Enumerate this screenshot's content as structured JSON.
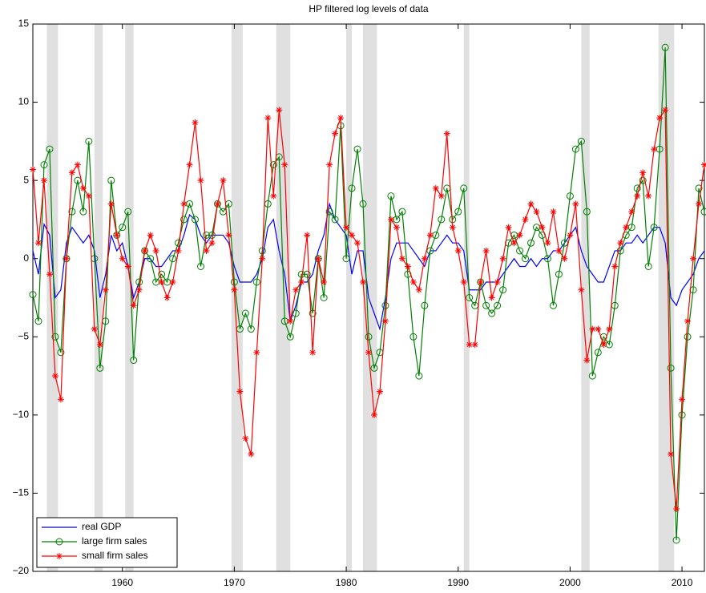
{
  "chart_data": {
    "type": "line",
    "title": "HP filtered log levels of data",
    "x": [
      1952,
      1952.5,
      1953,
      1953.5,
      1954,
      1954.5,
      1955,
      1955.5,
      1956,
      1956.5,
      1957,
      1957.5,
      1958,
      1958.5,
      1959,
      1959.5,
      1960,
      1960.5,
      1961,
      1961.5,
      1962,
      1962.5,
      1963,
      1963.5,
      1964,
      1964.5,
      1965,
      1965.5,
      1966,
      1966.5,
      1967,
      1967.5,
      1968,
      1968.5,
      1969,
      1969.5,
      1970,
      1970.5,
      1971,
      1971.5,
      1972,
      1972.5,
      1973,
      1973.5,
      1974,
      1974.5,
      1975,
      1975.5,
      1976,
      1976.5,
      1977,
      1977.5,
      1978,
      1978.5,
      1979,
      1979.5,
      1980,
      1980.5,
      1981,
      1981.5,
      1982,
      1982.5,
      1983,
      1983.5,
      1984,
      1984.5,
      1985,
      1985.5,
      1986,
      1986.5,
      1987,
      1987.5,
      1988,
      1988.5,
      1989,
      1989.5,
      1990,
      1990.5,
      1991,
      1991.5,
      1992,
      1992.5,
      1993,
      1993.5,
      1994,
      1994.5,
      1995,
      1995.5,
      1996,
      1996.5,
      1997,
      1997.5,
      1998,
      1998.5,
      1999,
      1999.5,
      2000,
      2000.5,
      2001,
      2001.5,
      2002,
      2002.5,
      2003,
      2003.5,
      2004,
      2004.5,
      2005,
      2005.5,
      2006,
      2006.5,
      2007,
      2007.5,
      2008,
      2008.5,
      2009,
      2009.5,
      2010,
      2010.5,
      2011,
      2011.5,
      2012
    ],
    "series": [
      {
        "name": "real GDP",
        "color": "#0000ff",
        "marker": "none",
        "values": [
          0.5,
          -1,
          2.2,
          1.5,
          -2.5,
          -2,
          1,
          2,
          1.5,
          1,
          1.5,
          0.5,
          -2.5,
          -1,
          1.5,
          0.5,
          1,
          -0.5,
          -2.5,
          -1.5,
          0,
          0,
          -0.5,
          -0.5,
          0,
          0.5,
          0.5,
          1.5,
          2.8,
          2.5,
          1.5,
          1,
          1.5,
          1.5,
          1.5,
          1,
          -0.5,
          -1.5,
          -1.5,
          -1.5,
          -1,
          0,
          2,
          2.5,
          0.5,
          -1,
          -4,
          -3,
          -1.5,
          -1.5,
          -1,
          0.5,
          1.5,
          3.5,
          2.5,
          2,
          1.5,
          -1,
          0.5,
          0.5,
          -2.5,
          -3.5,
          -4.5,
          -2.5,
          0,
          1,
          1,
          1,
          0.5,
          0,
          -0.5,
          0.5,
          0.5,
          1,
          1.5,
          1,
          1,
          0.5,
          -2,
          -2,
          -2,
          -1.5,
          -1.5,
          -1.5,
          -1,
          -0.5,
          0,
          -0.5,
          -0.5,
          0,
          -0.5,
          0,
          0,
          0.5,
          0.5,
          1,
          1.5,
          2,
          0.5,
          -0.5,
          -1,
          -1.5,
          -1.5,
          -0.5,
          0.5,
          0.5,
          1,
          1,
          1.5,
          1,
          1.5,
          2,
          2,
          1,
          -2.5,
          -3,
          -2,
          -1.5,
          -1,
          0,
          0.5
        ]
      },
      {
        "name": "large firm sales",
        "color": "#008000",
        "marker": "circle",
        "values": [
          -2.3,
          -4,
          6,
          7,
          -5,
          -6,
          0,
          3,
          5,
          3,
          7.5,
          0,
          -7,
          -4,
          5,
          1.5,
          2,
          3,
          -6.5,
          -1.5,
          0.5,
          0,
          -1.5,
          -1,
          -1.5,
          0,
          1,
          2.5,
          3.5,
          2.5,
          -0.5,
          1.5,
          1.5,
          3.5,
          3,
          3.5,
          -1.5,
          -4.5,
          -3.5,
          -4.5,
          -1.5,
          0.5,
          3.5,
          6,
          6.5,
          -4,
          -5,
          -3.5,
          -1,
          -1,
          -3.5,
          0,
          -2.5,
          3,
          2.5,
          8.5,
          0,
          4.5,
          7,
          3.5,
          -5,
          -7,
          -6,
          -3,
          4,
          2.5,
          3,
          -1,
          -5,
          -7.5,
          -3,
          0.5,
          1.5,
          2.5,
          4.5,
          2.5,
          3,
          4.5,
          -2.5,
          -3,
          -1.5,
          -3,
          -3.5,
          -3,
          -2,
          1,
          1.5,
          0.5,
          0,
          1,
          2,
          1.5,
          0,
          -3,
          -1,
          1,
          4,
          7,
          7.5,
          3,
          -7.5,
          -6,
          -5,
          -5.5,
          -3,
          0.5,
          1.5,
          2,
          4.5,
          5,
          -0.5,
          2,
          7,
          13.5,
          -7,
          -18,
          -10,
          -5,
          -2,
          4.5,
          3
        ]
      },
      {
        "name": "small firm sales",
        "color": "#ff0000",
        "marker": "asterisk",
        "values": [
          5.7,
          1,
          5,
          -1,
          -7.5,
          -9,
          0,
          5.5,
          6,
          4.5,
          4,
          -4.5,
          -5.5,
          -2,
          3.5,
          1.5,
          0,
          -0.5,
          -3,
          -2,
          0.5,
          1.5,
          0.5,
          -1.5,
          -2.5,
          -1.5,
          0.5,
          3.5,
          6,
          8.7,
          5,
          0.5,
          1,
          3.5,
          5,
          1.5,
          -2,
          -8.5,
          -11.5,
          -12.5,
          -6,
          0,
          9,
          4,
          9.5,
          6,
          -4,
          -2,
          -1.5,
          1.5,
          -6,
          0,
          -1.5,
          6,
          8,
          9,
          2,
          1.5,
          1,
          -1.5,
          -6,
          -10,
          -8.5,
          -4,
          2.5,
          2,
          0,
          -0.5,
          -1.5,
          -2,
          0,
          1.5,
          4.5,
          4,
          8,
          2,
          0.5,
          -1.5,
          -5.5,
          -5.5,
          -1.5,
          0.5,
          -2.5,
          -1.5,
          0,
          2,
          1,
          1.5,
          2.5,
          3.5,
          3,
          2,
          1,
          3,
          0.5,
          0,
          1.5,
          3.5,
          -2,
          -6.5,
          -4.5,
          -4.5,
          -5.5,
          -4.5,
          -0.5,
          1,
          2,
          3,
          4,
          5.5,
          4,
          7,
          9,
          9.5,
          -12.5,
          -16,
          -9,
          -4,
          0,
          3.5,
          6
        ]
      }
    ],
    "shaded_periods": [
      [
        1953.25,
        1954.25
      ],
      [
        1957.5,
        1958.25
      ],
      [
        1960.25,
        1961
      ],
      [
        1969.75,
        1970.75
      ],
      [
        1973.75,
        1975
      ],
      [
        1980,
        1980.5
      ],
      [
        1981.5,
        1982.75
      ],
      [
        1990.5,
        1991
      ],
      [
        2001,
        2001.75
      ],
      [
        2007.9,
        2009.3
      ]
    ],
    "shade_color": "#e0e0e0",
    "xlim": [
      1952,
      2012
    ],
    "xticks": [
      1960,
      1970,
      1980,
      1990,
      2000,
      2010
    ],
    "ylim": [
      -20,
      15
    ],
    "yticks": [
      {
        "value": -20,
        "label": "−20"
      },
      {
        "value": -15,
        "label": "−15"
      },
      {
        "value": -10,
        "label": "−10"
      },
      {
        "value": -5,
        "label": "−5"
      },
      0,
      5,
      10,
      15
    ],
    "legend": "lower left",
    "grid": false
  }
}
